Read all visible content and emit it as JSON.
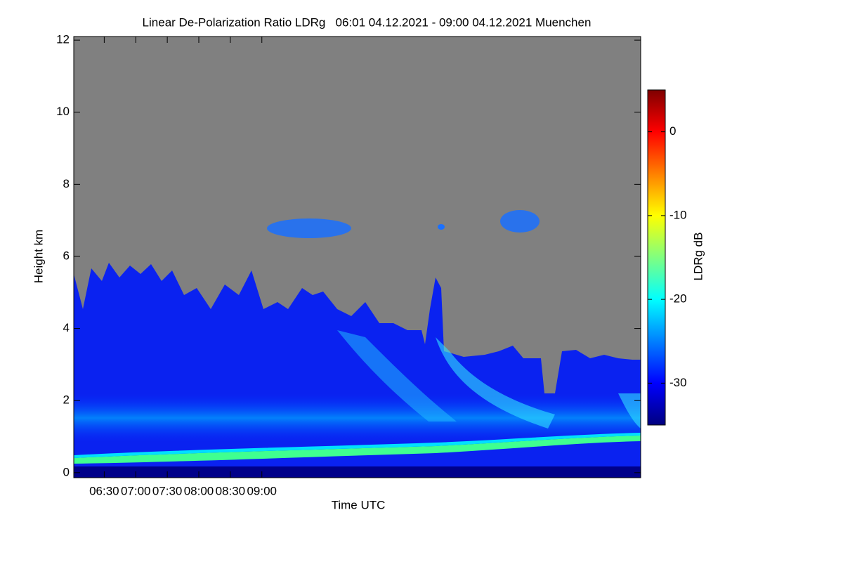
{
  "chart_data": {
    "type": "heatmap",
    "title": "Linear De-Polarization Ratio LDRg   06:01 04.12.2021 - 09:00 04.12.2021 Muenchen",
    "xlabel": "Time UTC",
    "ylabel": "Height km",
    "xlim": [
      361,
      900.5
    ],
    "xticks": [
      {
        "value": 390,
        "label": "06:30"
      },
      {
        "value": 420,
        "label": "07:00"
      },
      {
        "value": 450,
        "label": "07:30"
      },
      {
        "value": 480,
        "label": "08:00"
      },
      {
        "value": 510,
        "label": "08:30"
      },
      {
        "value": 540,
        "label": "09:00"
      }
    ],
    "ylim": [
      -0.14,
      12.1
    ],
    "yticks": [
      0,
      2,
      4,
      6,
      8,
      10,
      12
    ],
    "colorbar": {
      "label": "LDRg dB",
      "lim": [
        -35,
        5
      ],
      "ticks": [
        0,
        -10,
        -20,
        -30
      ],
      "colors": [
        "#00007f",
        "#0000ff",
        "#0080ff",
        "#00ffff",
        "#80ff80",
        "#ffff00",
        "#ff8000",
        "#ff0000",
        "#7f0000"
      ]
    }
  }
}
